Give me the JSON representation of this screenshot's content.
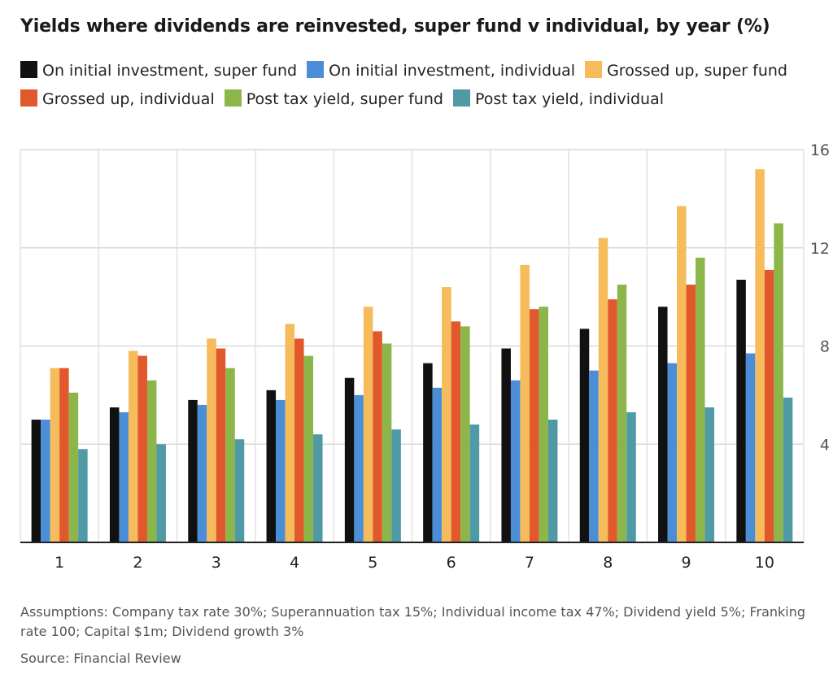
{
  "chart_data": {
    "type": "bar",
    "title": "Yields where dividends are reinvested, super fund v individual, by year (%)",
    "categories": [
      "1",
      "2",
      "3",
      "4",
      "5",
      "6",
      "7",
      "8",
      "9",
      "10"
    ],
    "ylim": [
      0,
      16
    ],
    "yticks": [
      "4",
      "8",
      "12",
      "16"
    ],
    "grid": true,
    "legend_position": "top",
    "series": [
      {
        "name": "On initial investment, super fund",
        "color": "#111111",
        "values": [
          5.0,
          5.5,
          5.8,
          6.2,
          6.7,
          7.3,
          7.9,
          8.7,
          9.6,
          10.7
        ]
      },
      {
        "name": "On initial investment, individual",
        "color": "#4a8ed8",
        "values": [
          5.0,
          5.3,
          5.6,
          5.8,
          6.0,
          6.3,
          6.6,
          7.0,
          7.3,
          7.7
        ]
      },
      {
        "name": "Grossed up, super fund",
        "color": "#f6bb5a",
        "values": [
          7.1,
          7.8,
          8.3,
          8.9,
          9.6,
          10.4,
          11.3,
          12.4,
          13.7,
          15.2
        ]
      },
      {
        "name": "Grossed up, individual",
        "color": "#e0582b",
        "values": [
          7.1,
          7.6,
          7.9,
          8.3,
          8.6,
          9.0,
          9.5,
          9.9,
          10.5,
          11.1
        ]
      },
      {
        "name": "Post tax yield, super fund",
        "color": "#8db64a",
        "values": [
          6.1,
          6.6,
          7.1,
          7.6,
          8.1,
          8.8,
          9.6,
          10.5,
          11.6,
          13.0
        ]
      },
      {
        "name": "Post tax yield, individual",
        "color": "#4f9aa5",
        "values": [
          3.8,
          4.0,
          4.2,
          4.4,
          4.6,
          4.8,
          5.0,
          5.3,
          5.5,
          5.9
        ]
      }
    ]
  },
  "footer": {
    "notes": "Assumptions: Company tax rate 30%; Superannuation tax 15%; Individual income tax 47%; Dividend yield 5%; Franking rate 100; Capital $1m; Dividend growth 3%",
    "source": "Source: Financial Review"
  }
}
